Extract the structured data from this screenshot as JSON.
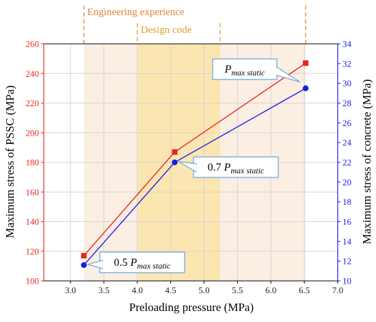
{
  "chart_data": {
    "type": "line",
    "xlabel": "Preloading pressure (MPa)",
    "ylabel_left": "Maximum stress of PSSC (MPa)",
    "ylabel_right": "Maximum stress of concrete (MPa)",
    "xlim": [
      2.6,
      7.0
    ],
    "ylim_left": [
      100,
      260
    ],
    "ylim_right": [
      10,
      34
    ],
    "x_ticks": [
      3.0,
      3.5,
      4.0,
      4.5,
      5.0,
      5.5,
      6.0,
      6.5,
      7.0
    ],
    "x_tick_labels": [
      "3.0",
      "3.5",
      "4.0",
      "4.5",
      "5.0",
      "5.5",
      "6.0",
      "6.5",
      "7.0"
    ],
    "y_left_ticks": [
      100,
      120,
      140,
      160,
      180,
      200,
      220,
      240,
      260
    ],
    "y_left_tick_labels": [
      "100",
      "120",
      "140",
      "160",
      "180",
      "200",
      "220",
      "240",
      "260"
    ],
    "y_right_ticks": [
      10,
      12,
      14,
      16,
      18,
      20,
      22,
      24,
      26,
      28,
      30,
      32,
      34
    ],
    "y_right_tick_labels": [
      "10",
      "12",
      "14",
      "16",
      "18",
      "20",
      "22",
      "24",
      "26",
      "28",
      "30",
      "32",
      "34"
    ],
    "grid": true,
    "series": [
      {
        "axis": "left",
        "color": "#e8251f",
        "marker": "square",
        "x": [
          3.2,
          4.56,
          6.52
        ],
        "y": [
          117,
          187,
          247
        ]
      },
      {
        "axis": "right",
        "color": "#1a1ae6",
        "marker": "circle",
        "x": [
          3.2,
          4.56,
          6.52
        ],
        "y": [
          11.6,
          22.0,
          29.5
        ]
      }
    ],
    "bands": [
      {
        "label": "Engineering experience",
        "x_range": [
          3.2,
          6.52
        ],
        "fill": "#fbeee3",
        "color": "#e0823c"
      },
      {
        "label": "Design code",
        "x_range": [
          4.0,
          5.24
        ],
        "fill": "#fbe6b1",
        "color": "#dba02a"
      }
    ],
    "annotations": [
      {
        "prefix": "0.5 ",
        "symbol": "P",
        "subscript": "max static",
        "target": "point-1",
        "arrow_color": "#6fa9d8"
      },
      {
        "prefix": "0.7 ",
        "symbol": "P",
        "subscript": "max static",
        "target": "point-2",
        "arrow_color": "#6fa9d8"
      },
      {
        "prefix": "",
        "symbol": "P",
        "subscript": "max static",
        "target": "point-3",
        "arrow_color": "#6fa9d8"
      }
    ],
    "colors": {
      "left_axis": "#e8251f",
      "right_axis": "#1a1ae6",
      "grid": "#d4d4d4",
      "callout_border": "#6fa9d8"
    }
  }
}
